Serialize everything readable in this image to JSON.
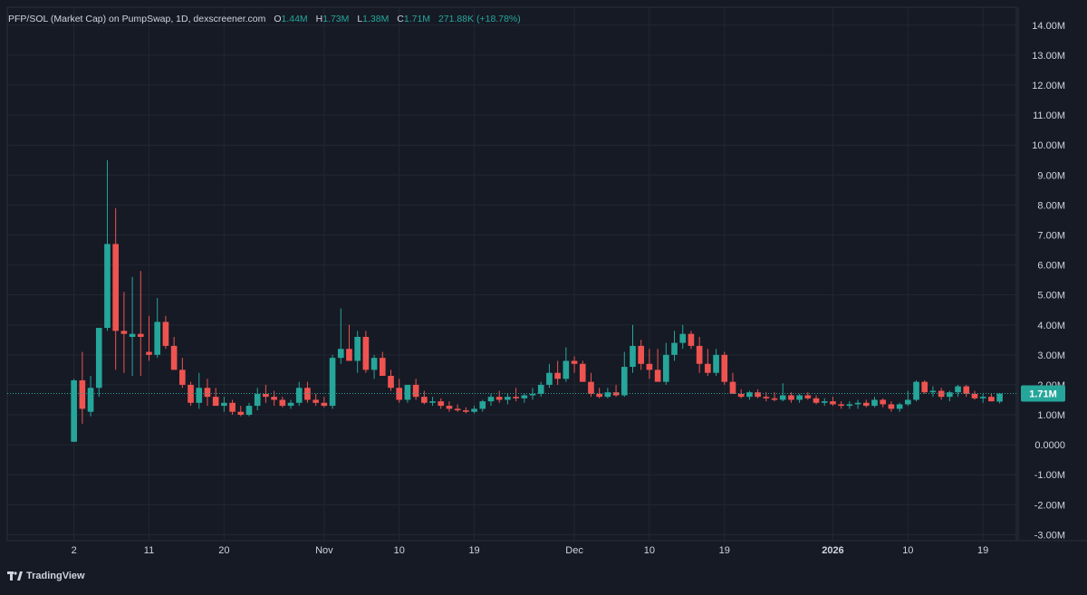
{
  "legend": {
    "title": "PFP/SOL (Market Cap) on PumpSwap, 1D, dexscreener.com",
    "o_label": "O",
    "o_value": "1.44M",
    "h_label": "H",
    "h_value": "1.73M",
    "l_label": "L",
    "l_value": "1.38M",
    "c_label": "C",
    "c_value": "1.71M",
    "change": "271.88K (+18.78%)"
  },
  "branding": {
    "text": "TradingView",
    "icon": "tradingview-logo-icon"
  },
  "colors": {
    "background": "#161a25",
    "up": "#26a69a",
    "down": "#ef5350",
    "grid": "#232733",
    "axis_text": "#d1d4dc",
    "price_line": "#26a69a"
  },
  "chart_data": {
    "type": "candlestick",
    "title": "PFP/SOL (Market Cap) on PumpSwap, 1D, dexscreener.com",
    "last_price_label": "1.71M",
    "last_price": 1.71,
    "ylim": [
      -3.2,
      14.6
    ],
    "y_unit": "M",
    "y_ticks": [
      -3,
      -2,
      -1,
      0,
      1,
      2,
      3,
      4,
      5,
      6,
      7,
      8,
      9,
      10,
      11,
      12,
      13,
      14
    ],
    "y_tick_labels": [
      "-3.00M",
      "-2.00M",
      "-1.00M",
      "0.0000",
      "1.00M",
      "2.00M",
      "3.00M",
      "4.00M",
      "5.00M",
      "6.00M",
      "7.00M",
      "8.00M",
      "9.00M",
      "10.00M",
      "11.00M",
      "12.00M",
      "13.00M",
      "14.00M"
    ],
    "x_range": [
      "2025-09-24",
      "2026-01-23"
    ],
    "x_ticks": [
      {
        "date": "2025-10-02",
        "label": "2",
        "bold": false
      },
      {
        "date": "2025-10-11",
        "label": "11",
        "bold": false
      },
      {
        "date": "2025-10-20",
        "label": "20",
        "bold": false
      },
      {
        "date": "2025-11-01",
        "label": "Nov",
        "bold": false
      },
      {
        "date": "2025-11-10",
        "label": "10",
        "bold": false
      },
      {
        "date": "2025-11-19",
        "label": "19",
        "bold": false
      },
      {
        "date": "2025-12-01",
        "label": "Dec",
        "bold": false
      },
      {
        "date": "2025-12-10",
        "label": "10",
        "bold": false
      },
      {
        "date": "2025-12-19",
        "label": "19",
        "bold": false
      },
      {
        "date": "2026-01-01",
        "label": "2026",
        "bold": true
      },
      {
        "date": "2026-01-10",
        "label": "10",
        "bold": false
      },
      {
        "date": "2026-01-19",
        "label": "19",
        "bold": false
      }
    ],
    "start_date": "2025-10-02",
    "grid": true,
    "candles": [
      [
        0.1,
        2.2,
        0.1,
        2.15
      ],
      [
        2.15,
        3.1,
        0.7,
        1.2
      ],
      [
        1.1,
        2.3,
        0.95,
        1.9
      ],
      [
        1.9,
        3.8,
        1.6,
        3.9
      ],
      [
        3.9,
        9.5,
        3.8,
        6.7
      ],
      [
        6.7,
        7.9,
        2.5,
        3.8
      ],
      [
        3.8,
        5.1,
        2.4,
        3.7
      ],
      [
        3.6,
        5.6,
        2.3,
        3.7
      ],
      [
        3.7,
        5.8,
        2.3,
        3.6
      ],
      [
        3.1,
        4.3,
        2.8,
        3.0
      ],
      [
        3.0,
        4.9,
        2.9,
        4.1
      ],
      [
        4.1,
        4.3,
        3.2,
        3.3
      ],
      [
        3.3,
        3.6,
        2.6,
        2.5
      ],
      [
        2.5,
        2.9,
        1.9,
        2.0
      ],
      [
        2.0,
        2.1,
        1.3,
        1.4
      ],
      [
        1.4,
        2.4,
        1.2,
        1.9
      ],
      [
        1.9,
        2.2,
        1.3,
        1.6
      ],
      [
        1.6,
        1.9,
        1.3,
        1.3
      ],
      [
        1.3,
        1.6,
        1.1,
        1.4
      ],
      [
        1.4,
        1.5,
        1.0,
        1.1
      ],
      [
        1.1,
        1.3,
        0.95,
        1.0
      ],
      [
        1.0,
        1.4,
        0.95,
        1.3
      ],
      [
        1.3,
        1.9,
        1.15,
        1.7
      ],
      [
        1.7,
        2.0,
        1.4,
        1.6
      ],
      [
        1.6,
        1.8,
        1.3,
        1.5
      ],
      [
        1.5,
        1.6,
        1.25,
        1.3
      ],
      [
        1.3,
        1.5,
        1.2,
        1.4
      ],
      [
        1.4,
        2.1,
        1.3,
        1.9
      ],
      [
        1.9,
        2.1,
        1.4,
        1.5
      ],
      [
        1.5,
        1.7,
        1.3,
        1.4
      ],
      [
        1.4,
        1.6,
        1.25,
        1.3
      ],
      [
        1.3,
        3.0,
        1.2,
        2.9
      ],
      [
        2.9,
        4.55,
        2.7,
        3.2
      ],
      [
        3.2,
        4.0,
        2.9,
        2.8
      ],
      [
        2.8,
        3.8,
        2.4,
        3.6
      ],
      [
        3.6,
        3.8,
        2.4,
        2.5
      ],
      [
        2.5,
        3.0,
        2.2,
        2.9
      ],
      [
        2.9,
        3.1,
        2.3,
        2.3
      ],
      [
        2.3,
        2.5,
        1.8,
        1.9
      ],
      [
        1.9,
        2.2,
        1.4,
        1.5
      ],
      [
        1.5,
        2.0,
        1.4,
        2.0
      ],
      [
        2.0,
        2.2,
        1.5,
        1.6
      ],
      [
        1.6,
        1.8,
        1.35,
        1.4
      ],
      [
        1.4,
        1.6,
        1.3,
        1.45
      ],
      [
        1.45,
        1.55,
        1.2,
        1.3
      ],
      [
        1.3,
        1.45,
        1.1,
        1.2
      ],
      [
        1.2,
        1.35,
        1.1,
        1.15
      ],
      [
        1.15,
        1.25,
        1.05,
        1.1
      ],
      [
        1.1,
        1.3,
        1.05,
        1.2
      ],
      [
        1.2,
        1.5,
        1.1,
        1.45
      ],
      [
        1.45,
        1.7,
        1.3,
        1.6
      ],
      [
        1.6,
        1.8,
        1.4,
        1.5
      ],
      [
        1.5,
        1.7,
        1.35,
        1.6
      ],
      [
        1.6,
        1.9,
        1.45,
        1.55
      ],
      [
        1.55,
        1.7,
        1.4,
        1.65
      ],
      [
        1.65,
        1.9,
        1.5,
        1.7
      ],
      [
        1.7,
        2.1,
        1.6,
        2.0
      ],
      [
        2.0,
        2.7,
        1.9,
        2.4
      ],
      [
        2.4,
        2.8,
        2.0,
        2.2
      ],
      [
        2.2,
        3.25,
        2.1,
        2.8
      ],
      [
        2.8,
        2.95,
        2.4,
        2.7
      ],
      [
        2.7,
        2.8,
        2.1,
        2.1
      ],
      [
        2.1,
        2.4,
        1.6,
        1.7
      ],
      [
        1.7,
        1.9,
        1.55,
        1.6
      ],
      [
        1.6,
        1.9,
        1.55,
        1.75
      ],
      [
        1.75,
        2.0,
        1.6,
        1.65
      ],
      [
        1.65,
        3.1,
        1.6,
        2.6
      ],
      [
        2.6,
        4.0,
        2.4,
        3.3
      ],
      [
        3.3,
        3.5,
        2.5,
        2.7
      ],
      [
        2.7,
        3.2,
        2.2,
        2.5
      ],
      [
        2.5,
        3.2,
        2.2,
        2.1
      ],
      [
        2.1,
        3.4,
        2.0,
        3.0
      ],
      [
        3.0,
        3.8,
        2.8,
        3.4
      ],
      [
        3.4,
        4.0,
        3.2,
        3.7
      ],
      [
        3.7,
        3.8,
        3.2,
        3.3
      ],
      [
        3.3,
        3.6,
        2.4,
        2.7
      ],
      [
        2.7,
        3.2,
        2.3,
        2.4
      ],
      [
        2.4,
        3.2,
        2.3,
        3.0
      ],
      [
        3.0,
        3.1,
        2.0,
        2.1
      ],
      [
        2.1,
        2.4,
        1.7,
        1.7
      ],
      [
        1.7,
        1.85,
        1.55,
        1.6
      ],
      [
        1.6,
        1.8,
        1.5,
        1.75
      ],
      [
        1.75,
        1.85,
        1.55,
        1.6
      ],
      [
        1.6,
        1.75,
        1.45,
        1.55
      ],
      [
        1.55,
        1.75,
        1.45,
        1.5
      ],
      [
        1.5,
        2.05,
        1.45,
        1.65
      ],
      [
        1.65,
        1.75,
        1.4,
        1.5
      ],
      [
        1.5,
        1.7,
        1.4,
        1.65
      ],
      [
        1.65,
        1.75,
        1.5,
        1.55
      ],
      [
        1.55,
        1.65,
        1.35,
        1.4
      ],
      [
        1.4,
        1.55,
        1.3,
        1.45
      ],
      [
        1.45,
        1.6,
        1.3,
        1.35
      ],
      [
        1.35,
        1.45,
        1.2,
        1.3
      ],
      [
        1.3,
        1.45,
        1.2,
        1.35
      ],
      [
        1.35,
        1.5,
        1.2,
        1.4
      ],
      [
        1.4,
        1.5,
        1.25,
        1.3
      ],
      [
        1.3,
        1.6,
        1.25,
        1.5
      ],
      [
        1.5,
        1.55,
        1.25,
        1.35
      ],
      [
        1.35,
        1.45,
        1.1,
        1.2
      ],
      [
        1.2,
        1.4,
        1.1,
        1.35
      ],
      [
        1.35,
        1.8,
        1.3,
        1.5
      ],
      [
        1.5,
        2.15,
        1.45,
        2.1
      ],
      [
        2.1,
        2.15,
        1.7,
        1.75
      ],
      [
        1.75,
        1.95,
        1.6,
        1.8
      ],
      [
        1.8,
        1.9,
        1.5,
        1.6
      ],
      [
        1.6,
        1.8,
        1.45,
        1.75
      ],
      [
        1.75,
        2.0,
        1.6,
        1.95
      ],
      [
        1.95,
        2.0,
        1.6,
        1.7
      ],
      [
        1.7,
        1.8,
        1.5,
        1.55
      ],
      [
        1.55,
        1.7,
        1.4,
        1.6
      ],
      [
        1.6,
        1.7,
        1.45,
        1.45
      ],
      [
        1.44,
        1.73,
        1.38,
        1.71
      ]
    ]
  }
}
